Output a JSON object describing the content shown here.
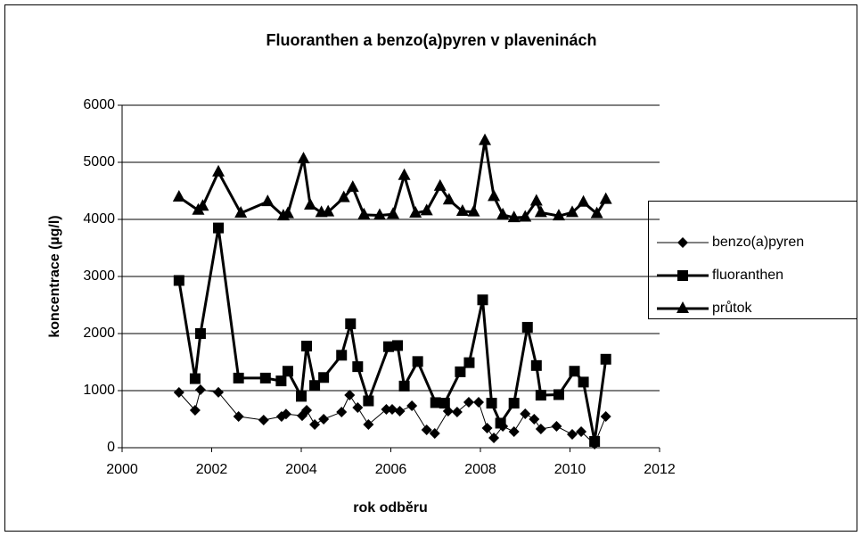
{
  "chart_data": {
    "type": "line",
    "title": "Fluoranthen a benzo(a)pyren v plaveninách",
    "x_label": "rok odběru",
    "y_label": "koncentrace (µg/l)",
    "xlim": [
      2000,
      2012
    ],
    "xticks": [
      2000,
      2002,
      2004,
      2006,
      2008,
      2010,
      2012
    ],
    "ylim": [
      0,
      6000
    ],
    "yticks": [
      0,
      1000,
      2000,
      3000,
      4000,
      5000,
      6000
    ],
    "grid": true,
    "legend": "right",
    "series": [
      {
        "name": "benzo(a)pyren",
        "color": "#000000",
        "marker": "diamond",
        "line_width": 1,
        "x": [
          2001.27,
          2001.63,
          2001.75,
          2002.15,
          2002.6,
          2003.16,
          2003.56,
          2003.66,
          2004.02,
          2004.12,
          2004.3,
          2004.5,
          2004.9,
          2005.08,
          2005.26,
          2005.5,
          2005.9,
          2006.03,
          2006.2,
          2006.47,
          2006.8,
          2006.98,
          2007.28,
          2007.48,
          2007.74,
          2007.96,
          2008.15,
          2008.3,
          2008.5,
          2008.75,
          2009.0,
          2009.2,
          2009.35,
          2009.7,
          2010.05,
          2010.25,
          2010.55,
          2010.8
        ],
        "values": [
          969,
          656,
          1015,
          970,
          547,
          484,
          547,
          590,
          560,
          656,
          406,
          500,
          625,
          922,
          703,
          406,
          672,
          672,
          640,
          734,
          312,
          250,
          640,
          625,
          797,
          797,
          343,
          172,
          375,
          281,
          594,
          500,
          328,
          375,
          234,
          281,
          62,
          547
        ]
      },
      {
        "name": "fluoranthen",
        "color": "#000000",
        "marker": "square",
        "line_width": 3,
        "x": [
          2001.27,
          2001.63,
          2001.75,
          2002.15,
          2002.6,
          2003.2,
          2003.55,
          2003.7,
          2004.0,
          2004.12,
          2004.3,
          2004.5,
          2004.9,
          2005.1,
          2005.26,
          2005.5,
          2005.95,
          2006.15,
          2006.3,
          2006.6,
          2007.0,
          2007.2,
          2007.55,
          2007.75,
          2008.05,
          2008.25,
          2008.45,
          2008.75,
          2009.05,
          2009.25,
          2009.35,
          2009.75,
          2010.1,
          2010.3,
          2010.55,
          2010.8
        ],
        "values": [
          2930,
          1210,
          2000,
          3850,
          1220,
          1220,
          1170,
          1340,
          900,
          1780,
          1090,
          1230,
          1620,
          2170,
          1420,
          820,
          1770,
          1790,
          1080,
          1510,
          790,
          780,
          1330,
          1490,
          2590,
          780,
          430,
          780,
          2110,
          1440,
          920,
          930,
          1340,
          1150,
          110,
          1550
        ]
      },
      {
        "name": "průtok",
        "color": "#000000",
        "marker": "triangle",
        "line_width": 3,
        "x": [
          2001.27,
          2001.7,
          2001.8,
          2002.15,
          2002.65,
          2003.25,
          2003.6,
          2003.7,
          2004.05,
          2004.2,
          2004.45,
          2004.6,
          2004.95,
          2005.15,
          2005.4,
          2005.75,
          2006.05,
          2006.3,
          2006.55,
          2006.8,
          2007.1,
          2007.3,
          2007.6,
          2007.85,
          2008.1,
          2008.3,
          2008.5,
          2008.75,
          2009.0,
          2009.25,
          2009.35,
          2009.75,
          2010.05,
          2010.3,
          2010.6,
          2010.8
        ],
        "values": [
          4390,
          4160,
          4230,
          4830,
          4110,
          4310,
          4060,
          4100,
          5060,
          4250,
          4120,
          4130,
          4380,
          4560,
          4080,
          4070,
          4090,
          4770,
          4110,
          4150,
          4580,
          4340,
          4140,
          4130,
          5380,
          4400,
          4080,
          4030,
          4040,
          4320,
          4120,
          4060,
          4120,
          4300,
          4100,
          4350
        ]
      }
    ]
  }
}
